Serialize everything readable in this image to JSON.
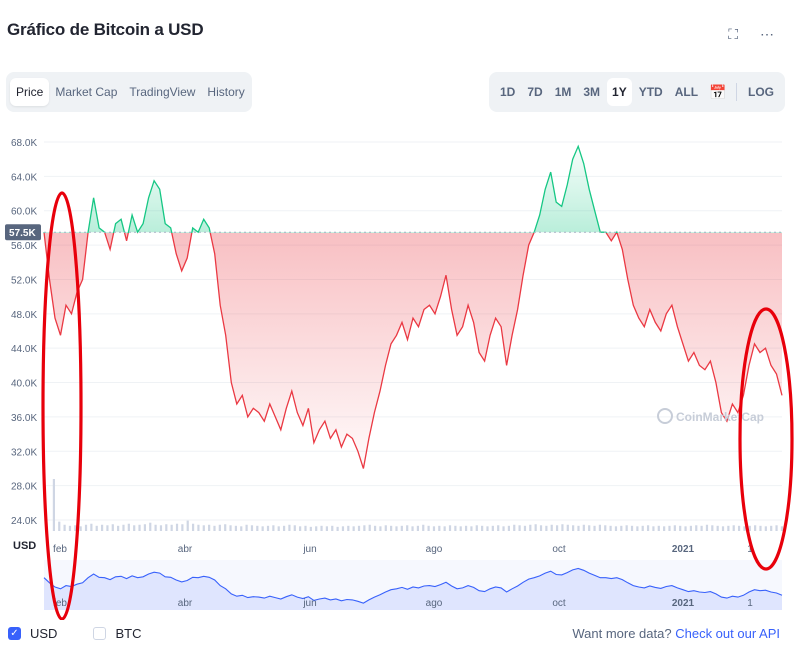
{
  "header": {
    "title": "Gráfico de Bitcoin a USD"
  },
  "icons": {
    "expand": "expand-icon",
    "more": "more-icon",
    "calendar": "calendar-icon"
  },
  "tabs": [
    {
      "label": "Price",
      "active": true
    },
    {
      "label": "Market Cap",
      "active": false
    },
    {
      "label": "TradingView",
      "active": false
    },
    {
      "label": "History",
      "active": false
    }
  ],
  "ranges": [
    {
      "label": "1D",
      "active": false
    },
    {
      "label": "7D",
      "active": false
    },
    {
      "label": "1M",
      "active": false
    },
    {
      "label": "3M",
      "active": false
    },
    {
      "label": "1Y",
      "active": true
    },
    {
      "label": "YTD",
      "active": false
    },
    {
      "label": "ALL",
      "active": false
    }
  ],
  "log_label": "LOG",
  "colors": {
    "up": "#16c784",
    "down": "#ea3943",
    "annotation": "#e8000b",
    "accent": "#3861fb"
  },
  "chart_data": {
    "type": "line",
    "y_unit": "USD",
    "y_axis_label": "USD",
    "ylim": [
      24000,
      68000
    ],
    "y_ticks": [
      "24.0K",
      "28.0K",
      "32.0K",
      "36.0K",
      "40.0K",
      "44.0K",
      "48.0K",
      "52.0K",
      "56.0K",
      "60.0K",
      "64.0K",
      "68.0K"
    ],
    "x_ticks": [
      "feb",
      "abr",
      "jun",
      "ago",
      "oct",
      "2021",
      "1"
    ],
    "reference_label": "57.5K",
    "reference_value": 57500,
    "watermark": "CoinMarketCap",
    "grid": true,
    "series": [
      {
        "values": [
          57500,
          52000,
          47500,
          45500,
          49000,
          48000,
          50500,
          52000,
          57500,
          61500,
          58000,
          57500,
          55500,
          58500,
          59000,
          56500,
          59500,
          57500,
          58500,
          61500,
          63500,
          62500,
          58500,
          58000,
          55000,
          53000,
          54500,
          58000,
          57500,
          59000,
          58000,
          55000,
          49000,
          45500,
          40000,
          37500,
          38500,
          36000,
          37000,
          36500,
          35500,
          37500,
          36000,
          34500,
          37000,
          39000,
          36500,
          35000,
          37000,
          33000,
          34500,
          35500,
          33500,
          34500,
          32500,
          34000,
          33500,
          32000,
          30000,
          33500,
          36500,
          39000,
          42000,
          44500,
          45500,
          47000,
          45000,
          47500,
          46500,
          48500,
          49000,
          48000,
          50000,
          52500,
          48500,
          45500,
          46500,
          49000,
          47000,
          43500,
          42500,
          45500,
          47500,
          46500,
          42000,
          45500,
          48500,
          52500,
          56000,
          57500,
          59500,
          62500,
          64500,
          61000,
          60500,
          63000,
          66000,
          67500,
          65500,
          62500,
          60000,
          57500,
          57500,
          56500,
          57500,
          55500,
          52000,
          49000,
          47500,
          46500,
          48500,
          47000,
          46000,
          48000,
          49000,
          46500,
          44500,
          42500,
          43500,
          42000,
          41500,
          42500,
          40000,
          36500,
          35500,
          37500,
          36500,
          38500,
          42000,
          44500,
          43500,
          44000,
          42000,
          41000,
          38500
        ]
      }
    ],
    "volume_relative": [
      1.0,
      0.18,
      0.12,
      0.1,
      0.11,
      0.09,
      0.12,
      0.14,
      0.1,
      0.12,
      0.11,
      0.13,
      0.1,
      0.12,
      0.14,
      0.11,
      0.12,
      0.13,
      0.16,
      0.12,
      0.11,
      0.13,
      0.12,
      0.14,
      0.13,
      0.2,
      0.14,
      0.12,
      0.11,
      0.12,
      0.1,
      0.12,
      0.13,
      0.11,
      0.1,
      0.09,
      0.12,
      0.11,
      0.1,
      0.09,
      0.1,
      0.11,
      0.09,
      0.1,
      0.12,
      0.11,
      0.09,
      0.1,
      0.08,
      0.09,
      0.1,
      0.09,
      0.1,
      0.08,
      0.09,
      0.1,
      0.09,
      0.1,
      0.11,
      0.12,
      0.1,
      0.09,
      0.11,
      0.1,
      0.09,
      0.1,
      0.11,
      0.09,
      0.1,
      0.12,
      0.1,
      0.09,
      0.1,
      0.09,
      0.11,
      0.1,
      0.09,
      0.1,
      0.09,
      0.11,
      0.1,
      0.09,
      0.1,
      0.11,
      0.09,
      0.1,
      0.12,
      0.11,
      0.1,
      0.12,
      0.13,
      0.11,
      0.1,
      0.12,
      0.11,
      0.13,
      0.12,
      0.11,
      0.1,
      0.12,
      0.11,
      0.1,
      0.12,
      0.11,
      0.1,
      0.09,
      0.1,
      0.11,
      0.1,
      0.09,
      0.1,
      0.11,
      0.09,
      0.1,
      0.09,
      0.1,
      0.11,
      0.1,
      0.09,
      0.1,
      0.11,
      0.1,
      0.12,
      0.11,
      0.1,
      0.09,
      0.1,
      0.11,
      0.1,
      0.09,
      0.1,
      0.11,
      0.1,
      0.09,
      0.1,
      0.11,
      0.09
    ]
  },
  "legend": {
    "usd_label": "USD",
    "btc_label": "BTC"
  },
  "footer": {
    "prefix": "Want more data?",
    "link": "Check out our API"
  }
}
